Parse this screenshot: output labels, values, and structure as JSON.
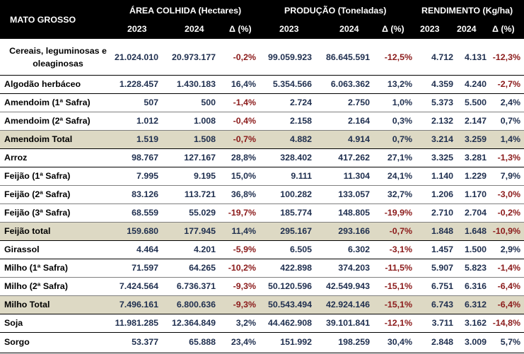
{
  "header": {
    "title": "MATO GROSSO",
    "groups": [
      "ÁREA COLHIDA  (Hectares)",
      "PRODUÇÃO  (Toneladas)",
      "RENDIMENTO (Kg/ha)"
    ],
    "sub": [
      "2023",
      "2024",
      "Δ (%)",
      "2023",
      "2024",
      "Δ (%)",
      "2023",
      "2024",
      "Δ (%)"
    ]
  },
  "rows": [
    {
      "label": "Cereais, leguminosas e oleaginosas",
      "values": [
        "21.024.010",
        "20.973.177",
        "-0,2%",
        "99.059.923",
        "86.645.591",
        "-12,5%",
        "4.712",
        "4.131",
        "-12,3%"
      ]
    },
    {
      "label": "Algodão herbáceo",
      "values": [
        "1.228.457",
        "1.430.183",
        "16,4%",
        "5.354.566",
        "6.063.362",
        "13,2%",
        "4.359",
        "4.240",
        "-2,7%"
      ]
    },
    {
      "label": "Amendoim (1ª Safra)",
      "values": [
        "507",
        "500",
        "-1,4%",
        "2.724",
        "2.750",
        "1,0%",
        "5.373",
        "5.500",
        "2,4%"
      ]
    },
    {
      "label": "Amendoim (2ª Safra)",
      "values": [
        "1.012",
        "1.008",
        "-0,4%",
        "2.158",
        "2.164",
        "0,3%",
        "2.132",
        "2.147",
        "0,7%"
      ]
    },
    {
      "label": "Amendoim Total",
      "values": [
        "1.519",
        "1.508",
        "-0,7%",
        "4.882",
        "4.914",
        "0,7%",
        "3.214",
        "3.259",
        "1,4%"
      ]
    },
    {
      "label": "Arroz",
      "values": [
        "98.767",
        "127.167",
        "28,8%",
        "328.402",
        "417.262",
        "27,1%",
        "3.325",
        "3.281",
        "-1,3%"
      ]
    },
    {
      "label": "Feijão (1ª Safra)",
      "values": [
        "7.995",
        "9.195",
        "15,0%",
        "9.111",
        "11.304",
        "24,1%",
        "1.140",
        "1.229",
        "7,9%"
      ]
    },
    {
      "label": "Feijão (2ª Safra)",
      "values": [
        "83.126",
        "113.721",
        "36,8%",
        "100.282",
        "133.057",
        "32,7%",
        "1.206",
        "1.170",
        "-3,0%"
      ]
    },
    {
      "label": "Feijão (3ª Safra)",
      "values": [
        "68.559",
        "55.029",
        "-19,7%",
        "185.774",
        "148.805",
        "-19,9%",
        "2.710",
        "2.704",
        "-0,2%"
      ]
    },
    {
      "label": "Feijão total",
      "values": [
        "159.680",
        "177.945",
        "11,4%",
        "295.167",
        "293.166",
        "-0,7%",
        "1.848",
        "1.648",
        "-10,9%"
      ]
    },
    {
      "label": "Girassol",
      "values": [
        "4.464",
        "4.201",
        "-5,9%",
        "6.505",
        "6.302",
        "-3,1%",
        "1.457",
        "1.500",
        "2,9%"
      ]
    },
    {
      "label": "Milho (1ª Safra)",
      "values": [
        "71.597",
        "64.265",
        "-10,2%",
        "422.898",
        "374.203",
        "-11,5%",
        "5.907",
        "5.823",
        "-1,4%"
      ]
    },
    {
      "label": "Milho (2ª Safra)",
      "values": [
        "7.424.564",
        "6.736.371",
        "-9,3%",
        "50.120.596",
        "42.549.943",
        "-15,1%",
        "6.751",
        "6.316",
        "-6,4%"
      ]
    },
    {
      "label": "Milho Total",
      "values": [
        "7.496.161",
        "6.800.636",
        "-9,3%",
        "50.543.494",
        "42.924.146",
        "-15,1%",
        "6.743",
        "6.312",
        "-6,4%"
      ]
    },
    {
      "label": "Soja",
      "values": [
        "11.981.285",
        "12.364.849",
        "3,2%",
        "44.462.908",
        "39.101.841",
        "-12,1%",
        "3.711",
        "3.162",
        "-14,8%"
      ]
    },
    {
      "label": "Sorgo",
      "values": [
        "53.377",
        "65.888",
        "23,4%",
        "151.992",
        "198.259",
        "30,4%",
        "2.848",
        "3.009",
        "5,7%"
      ]
    }
  ]
}
